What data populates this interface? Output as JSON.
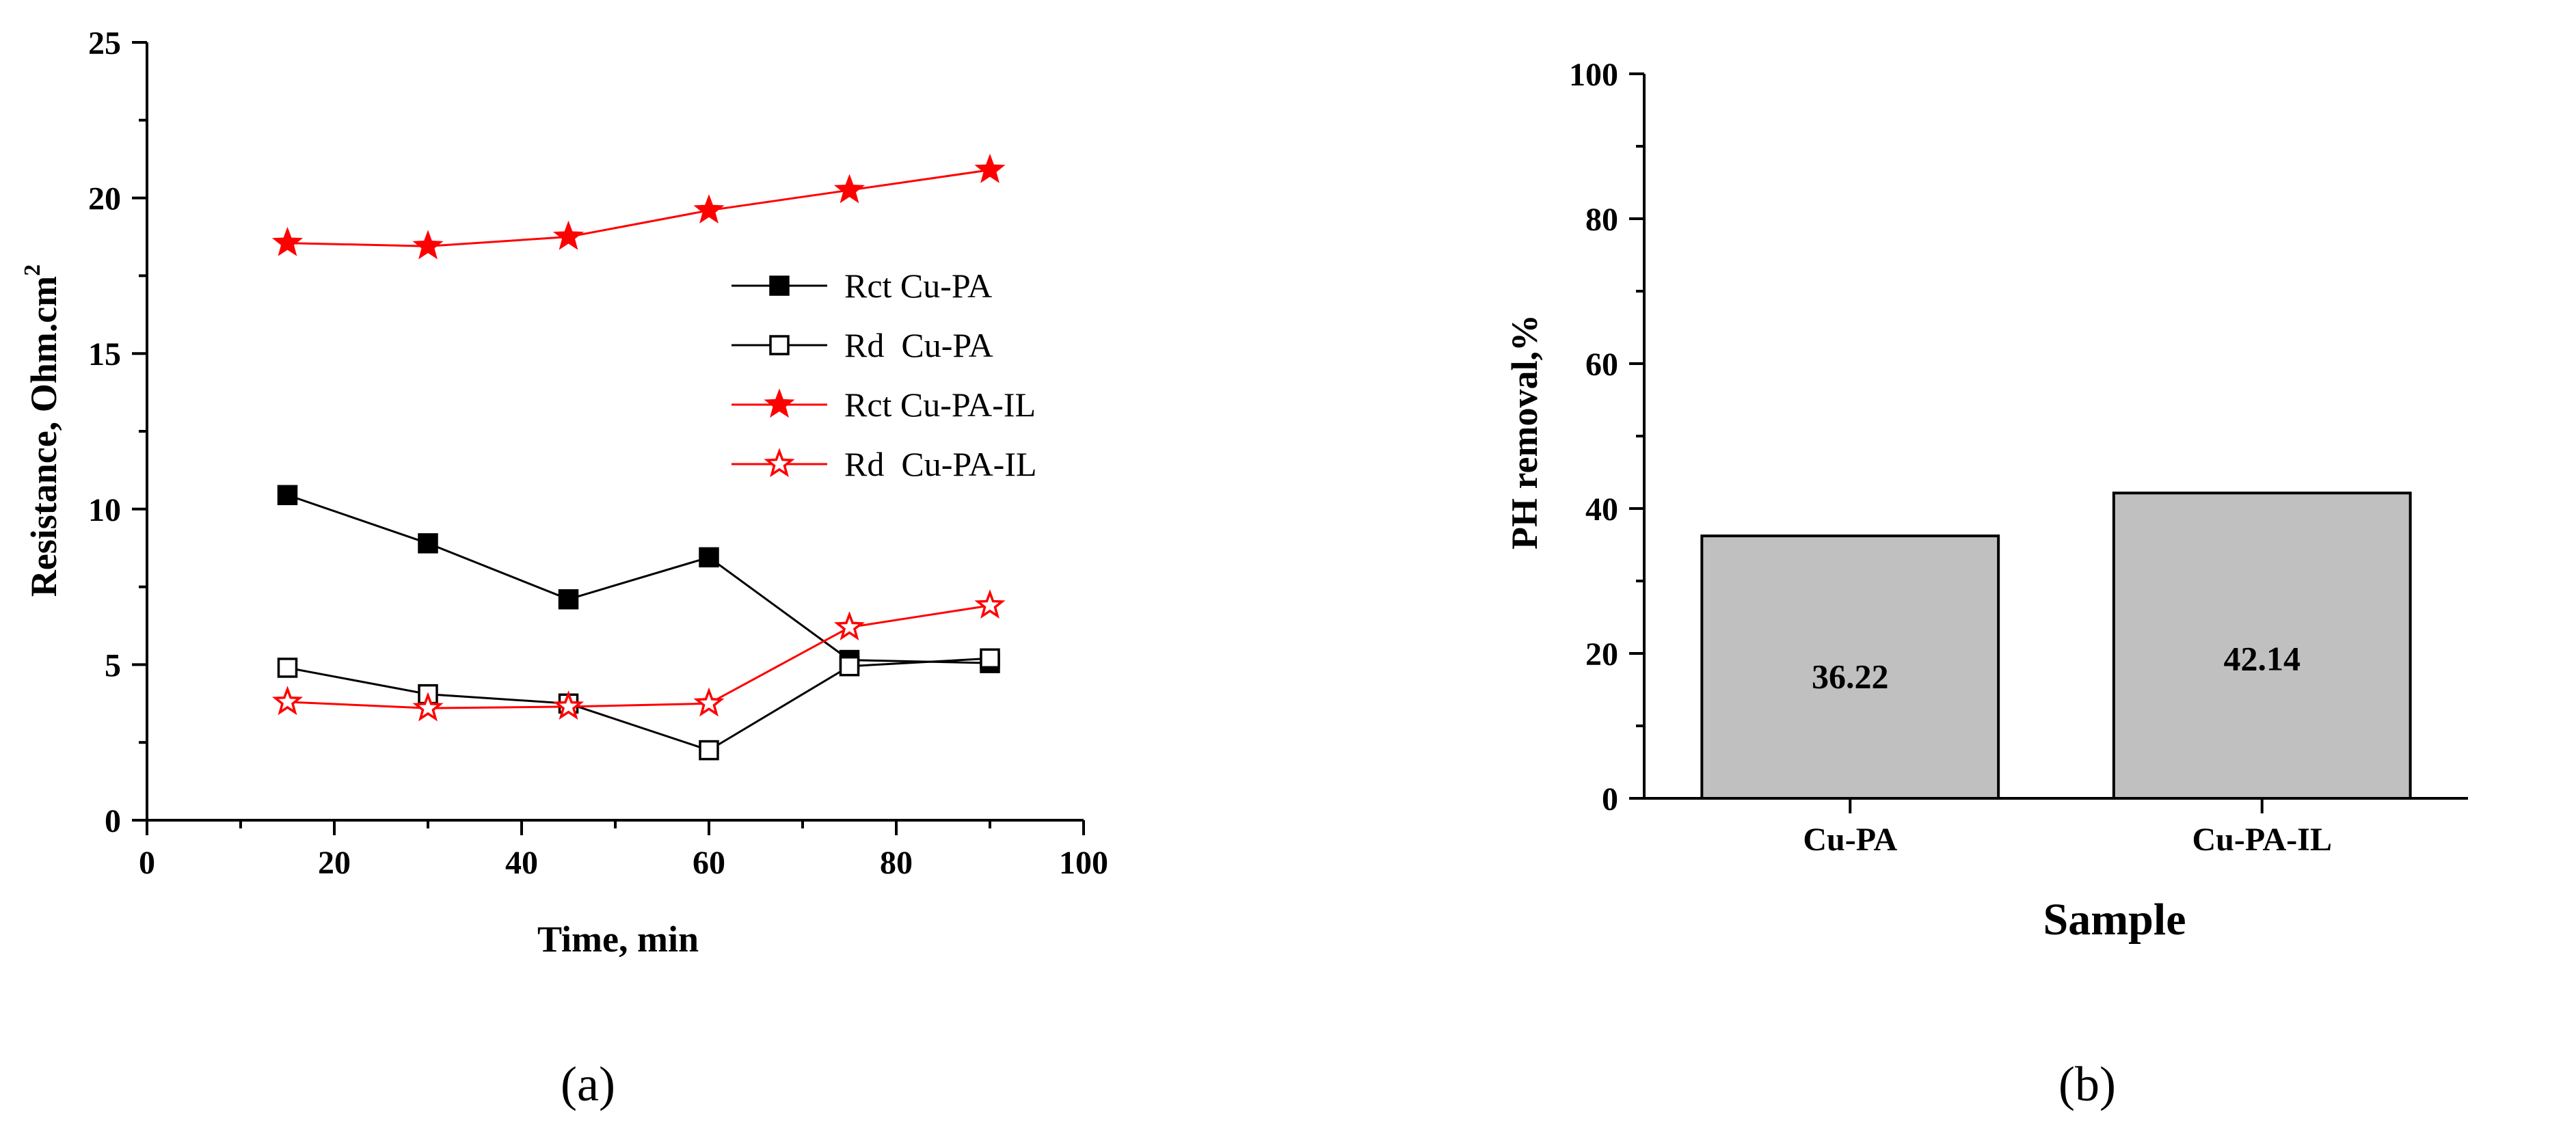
{
  "chart_data": [
    {
      "type": "line",
      "panel_label": "(a)",
      "xlabel": "Time, min",
      "ylabel": "Resistance, Ohm.cm",
      "ylabel_sup": "2",
      "xlim": [
        0,
        100
      ],
      "ylim": [
        0,
        25
      ],
      "xticks": [
        0,
        20,
        40,
        60,
        80,
        100
      ],
      "yticks": [
        0,
        5,
        10,
        15,
        20,
        25
      ],
      "legend_position": "right",
      "x": [
        15,
        30,
        45,
        60,
        75,
        90
      ],
      "series": [
        {
          "name": "Rct Cu-PA",
          "color": "#000000",
          "marker": "square-filled",
          "values": [
            10.45,
            8.9,
            7.1,
            8.45,
            5.15,
            5.05
          ]
        },
        {
          "name": "Rd  Cu-PA",
          "color": "#000000",
          "marker": "square-open",
          "values": [
            4.9,
            4.05,
            3.75,
            2.25,
            4.95,
            5.2
          ]
        },
        {
          "name": "Rct Cu-PA-IL",
          "color": "#ff0000",
          "marker": "star-filled",
          "values": [
            18.55,
            18.45,
            18.75,
            19.6,
            20.25,
            20.9
          ]
        },
        {
          "name": "Rd  Cu-PA-IL",
          "color": "#ff0000",
          "marker": "star-open",
          "values": [
            3.8,
            3.6,
            3.65,
            3.75,
            6.2,
            6.9
          ]
        }
      ]
    },
    {
      "type": "bar",
      "panel_label": "(b)",
      "xlabel": "Sample",
      "ylabel": "PH removal,%",
      "ylim": [
        0,
        100
      ],
      "yticks": [
        0,
        20,
        40,
        60,
        80,
        100
      ],
      "categories": [
        "Cu-PA",
        "Cu-PA-IL"
      ],
      "values": [
        36.22,
        42.14
      ],
      "value_labels": [
        "36.22",
        "42.14"
      ],
      "bar_color": "#c0c0c0"
    }
  ]
}
